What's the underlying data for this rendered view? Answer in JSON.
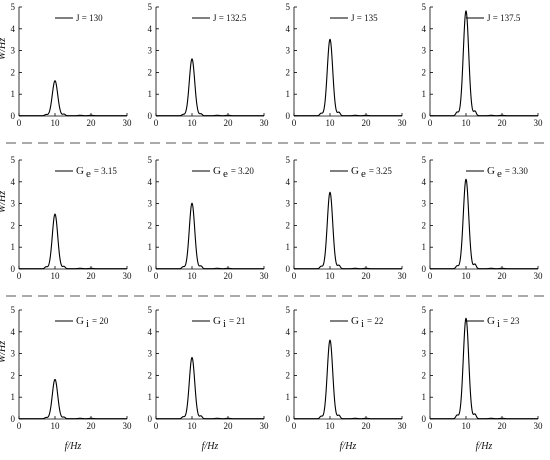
{
  "figure": {
    "ylabel": "W/Hz",
    "xlabel": "f/Hz",
    "xticks": [
      0,
      10,
      20,
      30
    ],
    "yticks": [
      0,
      1,
      2,
      3,
      4,
      5
    ],
    "xlim": [
      0,
      30
    ],
    "ylim": [
      0,
      5
    ],
    "line_color": "#000000",
    "separator": "dashed"
  },
  "chart_data": [
    {
      "type": "line",
      "row": 0,
      "col": 0,
      "legend": {
        "symbol": "J",
        "value": "130"
      },
      "peak": {
        "x": 10,
        "y": 1.6
      },
      "side_peaks": [
        {
          "x": 7.5,
          "y": 0.05
        },
        {
          "x": 12.5,
          "y": 0.07
        }
      ],
      "xlim": [
        0,
        30
      ],
      "ylim": [
        0,
        5
      ],
      "xlabel": "",
      "ylabel": "W/Hz"
    },
    {
      "type": "line",
      "row": 0,
      "col": 1,
      "legend": {
        "symbol": "J",
        "value": "132.5"
      },
      "peak": {
        "x": 10,
        "y": 2.6
      },
      "side_peaks": [
        {
          "x": 7.5,
          "y": 0.05
        },
        {
          "x": 12.5,
          "y": 0.08
        }
      ],
      "xlim": [
        0,
        30
      ],
      "ylim": [
        0,
        5
      ],
      "xlabel": "",
      "ylabel": ""
    },
    {
      "type": "line",
      "row": 0,
      "col": 2,
      "legend": {
        "symbol": "J",
        "value": "135"
      },
      "peak": {
        "x": 10,
        "y": 3.5
      },
      "side_peaks": [
        {
          "x": 7.5,
          "y": 0.1
        },
        {
          "x": 12.5,
          "y": 0.15
        }
      ],
      "xlim": [
        0,
        30
      ],
      "ylim": [
        0,
        5
      ],
      "xlabel": "",
      "ylabel": ""
    },
    {
      "type": "line",
      "row": 0,
      "col": 3,
      "legend": {
        "symbol": "J",
        "value": "137.5"
      },
      "peak": {
        "x": 10,
        "y": 4.8
      },
      "side_peaks": [
        {
          "x": 7.5,
          "y": 0.15
        },
        {
          "x": 12.5,
          "y": 0.2
        }
      ],
      "xlim": [
        0,
        30
      ],
      "ylim": [
        0,
        5
      ],
      "xlabel": "",
      "ylabel": ""
    },
    {
      "type": "line",
      "row": 1,
      "col": 0,
      "legend": {
        "symbol": "G",
        "sub": "e",
        "value": "3.15"
      },
      "peak": {
        "x": 10,
        "y": 2.5
      },
      "side_peaks": [
        {
          "x": 7.5,
          "y": 0.08
        },
        {
          "x": 12.5,
          "y": 0.1
        }
      ],
      "xlim": [
        0,
        30
      ],
      "ylim": [
        0,
        5
      ],
      "xlabel": "",
      "ylabel": "W/Hz"
    },
    {
      "type": "line",
      "row": 1,
      "col": 1,
      "legend": {
        "symbol": "G",
        "sub": "e",
        "value": "3.20"
      },
      "peak": {
        "x": 10,
        "y": 3.0
      },
      "side_peaks": [
        {
          "x": 7.5,
          "y": 0.08
        },
        {
          "x": 12.5,
          "y": 0.12
        }
      ],
      "xlim": [
        0,
        30
      ],
      "ylim": [
        0,
        5
      ],
      "xlabel": "",
      "ylabel": ""
    },
    {
      "type": "line",
      "row": 1,
      "col": 2,
      "legend": {
        "symbol": "G",
        "sub": "e",
        "value": "3.25"
      },
      "peak": {
        "x": 10,
        "y": 3.5
      },
      "side_peaks": [
        {
          "x": 7.5,
          "y": 0.1
        },
        {
          "x": 12.5,
          "y": 0.15
        }
      ],
      "xlim": [
        0,
        30
      ],
      "ylim": [
        0,
        5
      ],
      "xlabel": "",
      "ylabel": ""
    },
    {
      "type": "line",
      "row": 1,
      "col": 3,
      "legend": {
        "symbol": "G",
        "sub": "e",
        "value": "3.30"
      },
      "peak": {
        "x": 10,
        "y": 4.1
      },
      "side_peaks": [
        {
          "x": 7.5,
          "y": 0.12
        },
        {
          "x": 12.5,
          "y": 0.2
        }
      ],
      "xlim": [
        0,
        30
      ],
      "ylim": [
        0,
        5
      ],
      "xlabel": "",
      "ylabel": ""
    },
    {
      "type": "line",
      "row": 2,
      "col": 0,
      "legend": {
        "symbol": "G",
        "sub": "i",
        "value": "20"
      },
      "peak": {
        "x": 10,
        "y": 1.8
      },
      "side_peaks": [
        {
          "x": 7.5,
          "y": 0.05
        },
        {
          "x": 12.5,
          "y": 0.07
        }
      ],
      "xlim": [
        0,
        30
      ],
      "ylim": [
        0,
        5
      ],
      "xlabel": "f/Hz",
      "ylabel": "W/Hz"
    },
    {
      "type": "line",
      "row": 2,
      "col": 1,
      "legend": {
        "symbol": "G",
        "sub": "i",
        "value": "21"
      },
      "peak": {
        "x": 10,
        "y": 2.8
      },
      "side_peaks": [
        {
          "x": 7.5,
          "y": 0.08
        },
        {
          "x": 12.5,
          "y": 0.12
        }
      ],
      "xlim": [
        0,
        30
      ],
      "ylim": [
        0,
        5
      ],
      "xlabel": "f/Hz",
      "ylabel": ""
    },
    {
      "type": "line",
      "row": 2,
      "col": 2,
      "legend": {
        "symbol": "G",
        "sub": "i",
        "value": "22"
      },
      "peak": {
        "x": 10,
        "y": 3.6
      },
      "side_peaks": [
        {
          "x": 7.5,
          "y": 0.1
        },
        {
          "x": 12.5,
          "y": 0.15
        }
      ],
      "xlim": [
        0,
        30
      ],
      "ylim": [
        0,
        5
      ],
      "xlabel": "f/Hz",
      "ylabel": ""
    },
    {
      "type": "line",
      "row": 2,
      "col": 3,
      "legend": {
        "symbol": "G",
        "sub": "i",
        "value": "23"
      },
      "peak": {
        "x": 10,
        "y": 4.6
      },
      "side_peaks": [
        {
          "x": 7.5,
          "y": 0.15
        },
        {
          "x": 12.5,
          "y": 0.2
        }
      ],
      "xlim": [
        0,
        30
      ],
      "ylim": [
        0,
        5
      ],
      "xlabel": "f/Hz",
      "ylabel": ""
    }
  ]
}
